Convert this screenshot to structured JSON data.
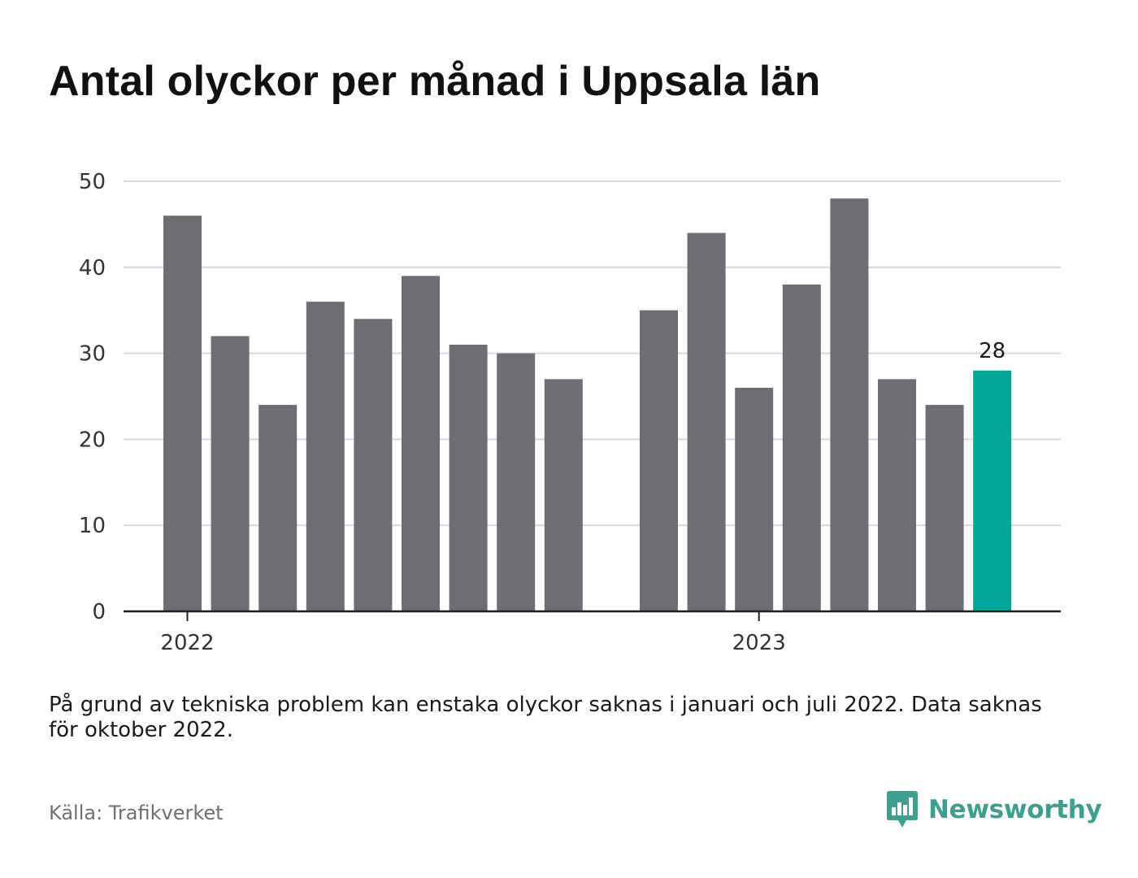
{
  "title": "Antal olyckor per månad i Uppsala län",
  "note": "På grund av tekniska problem kan enstaka olyckor saknas i januari och juli 2022. Data saknas för oktober 2022.",
  "source": "Källa: Trafikverket",
  "brand": {
    "name": "Newsworthy",
    "color": "#3f9e8f",
    "icon": "bar-chart-speech-bubble-icon"
  },
  "colors": {
    "bar": "#6e6d73",
    "highlight": "#00a699",
    "grid": "#d9d9d9",
    "axis": "#222222",
    "text": "#333333"
  },
  "chart_data": {
    "type": "bar",
    "ylim": [
      0,
      50
    ],
    "yticks": [
      0,
      10,
      20,
      30,
      40,
      50
    ],
    "grid": true,
    "x_labels": [
      {
        "label": "2022",
        "at": "2022-01"
      },
      {
        "label": "2023",
        "at": "2023-01"
      }
    ],
    "categories": [
      "2022-01",
      "2022-02",
      "2022-03",
      "2022-04",
      "2022-05",
      "2022-06",
      "2022-07",
      "2022-08",
      "2022-09",
      "2022-10",
      "2022-11",
      "2022-12",
      "2023-01",
      "2023-02",
      "2023-03",
      "2023-04",
      "2023-05",
      "2023-06",
      "2023-07",
      "2023-08"
    ],
    "values": [
      46,
      32,
      24,
      36,
      34,
      39,
      31,
      30,
      27,
      null,
      35,
      44,
      26,
      38,
      48,
      27,
      24,
      28,
      null,
      null
    ],
    "highlight": {
      "category": "2023-06",
      "label": "28"
    }
  }
}
